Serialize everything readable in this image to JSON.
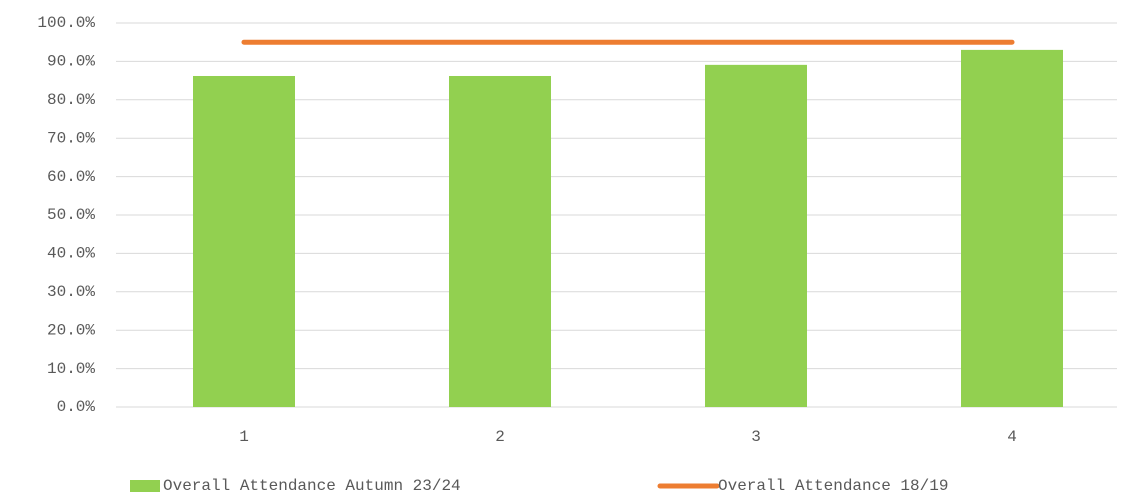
{
  "chart_data": {
    "type": "bar",
    "categories": [
      "1",
      "2",
      "3",
      "4"
    ],
    "series": [
      {
        "name": "Overall Attendance Autumn 23/24",
        "type": "bar",
        "color": "#92d050",
        "values": [
          86.2,
          86.2,
          89.1,
          93.0
        ]
      },
      {
        "name": "Overall Attendance 18/19",
        "type": "line",
        "color": "#ed7d31",
        "values": [
          95,
          95,
          95,
          95
        ]
      }
    ],
    "ylim": [
      0,
      100
    ],
    "yticks": [
      {
        "value": 0,
        "label": "0.0%"
      },
      {
        "value": 10,
        "label": "10.0%"
      },
      {
        "value": 20,
        "label": "20.0%"
      },
      {
        "value": 30,
        "label": "30.0%"
      },
      {
        "value": 40,
        "label": "40.0%"
      },
      {
        "value": 50,
        "label": "50.0%"
      },
      {
        "value": 60,
        "label": "60.0%"
      },
      {
        "value": 70,
        "label": "70.0%"
      },
      {
        "value": 80,
        "label": "80.0%"
      },
      {
        "value": 90,
        "label": "90.0%"
      },
      {
        "value": 100,
        "label": "100.0%"
      }
    ],
    "grid": true,
    "legend": "bottom"
  }
}
